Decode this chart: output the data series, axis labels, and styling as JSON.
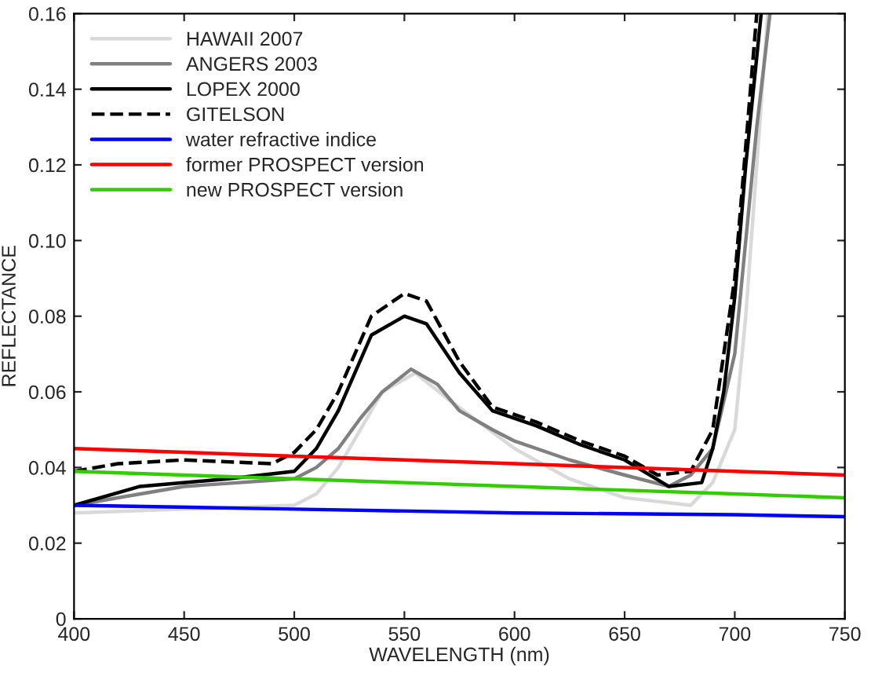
{
  "chart_data": {
    "type": "line",
    "xlabel": "WAVELENGTH (nm)",
    "ylabel": "REFLECTANCE",
    "xlim": [
      400,
      750
    ],
    "ylim": [
      0,
      0.16
    ],
    "xticks": [
      400,
      450,
      500,
      550,
      600,
      650,
      700,
      750
    ],
    "yticks": [
      0,
      0.02,
      0.04,
      0.06,
      0.08,
      {
        "value": 0.1,
        "label": "0.10"
      },
      0.12,
      0.14,
      0.16
    ],
    "legend": "top left",
    "grid": false,
    "series": [
      {
        "name": "HAWAII 2007",
        "color": "#d9d9d9",
        "line_style": "solid",
        "x": [
          400,
          450,
          500,
          510,
          520,
          530,
          540,
          555,
          570,
          600,
          625,
          650,
          680,
          690,
          700,
          705,
          710,
          715
        ],
        "values": [
          0.028,
          0.029,
          0.03,
          0.033,
          0.04,
          0.05,
          0.06,
          0.065,
          0.058,
          0.045,
          0.037,
          0.032,
          0.03,
          0.036,
          0.05,
          0.08,
          0.12,
          0.16
        ]
      },
      {
        "name": "ANGERS 2003",
        "color": "#808080",
        "line_style": "solid",
        "x": [
          400,
          450,
          500,
          510,
          520,
          530,
          540,
          553,
          565,
          575,
          590,
          600,
          625,
          650,
          670,
          680,
          690,
          700,
          705,
          710,
          716
        ],
        "values": [
          0.03,
          0.035,
          0.037,
          0.04,
          0.045,
          0.053,
          0.06,
          0.066,
          0.062,
          0.055,
          0.05,
          0.047,
          0.042,
          0.038,
          0.035,
          0.038,
          0.045,
          0.07,
          0.1,
          0.13,
          0.16
        ]
      },
      {
        "name": "LOPEX 2000",
        "color": "#000000",
        "line_style": "solid",
        "x": [
          400,
          430,
          470,
          500,
          510,
          520,
          535,
          550,
          560,
          575,
          590,
          610,
          630,
          650,
          670,
          685,
          690,
          695,
          700,
          705,
          712
        ],
        "values": [
          0.03,
          0.035,
          0.037,
          0.039,
          0.045,
          0.055,
          0.075,
          0.08,
          0.078,
          0.065,
          0.055,
          0.051,
          0.046,
          0.042,
          0.035,
          0.036,
          0.045,
          0.06,
          0.085,
          0.12,
          0.16
        ]
      },
      {
        "name": "GITELSON",
        "color": "#000000",
        "line_style": "dashed",
        "x": [
          400,
          420,
          450,
          490,
          500,
          510,
          520,
          535,
          550,
          560,
          575,
          590,
          610,
          630,
          650,
          665,
          680,
          690,
          700,
          710
        ],
        "values": [
          0.039,
          0.041,
          0.042,
          0.041,
          0.044,
          0.05,
          0.06,
          0.08,
          0.086,
          0.084,
          0.068,
          0.056,
          0.052,
          0.047,
          0.043,
          0.038,
          0.039,
          0.05,
          0.09,
          0.16
        ]
      },
      {
        "name": "water refractive indice",
        "color": "#0000ff",
        "line_style": "solid",
        "x": [
          400,
          500,
          600,
          700,
          750
        ],
        "values": [
          0.03,
          0.029,
          0.028,
          0.0275,
          0.027
        ]
      },
      {
        "name": "former PROSPECT version",
        "color": "#ff0000",
        "line_style": "solid",
        "x": [
          400,
          500,
          600,
          700,
          750
        ],
        "values": [
          0.045,
          0.043,
          0.041,
          0.039,
          0.038
        ]
      },
      {
        "name": "new PROSPECT version",
        "color": "#33cc00",
        "line_style": "solid",
        "x": [
          400,
          500,
          600,
          700,
          750
        ],
        "values": [
          0.039,
          0.037,
          0.035,
          0.033,
          0.032
        ]
      }
    ]
  }
}
